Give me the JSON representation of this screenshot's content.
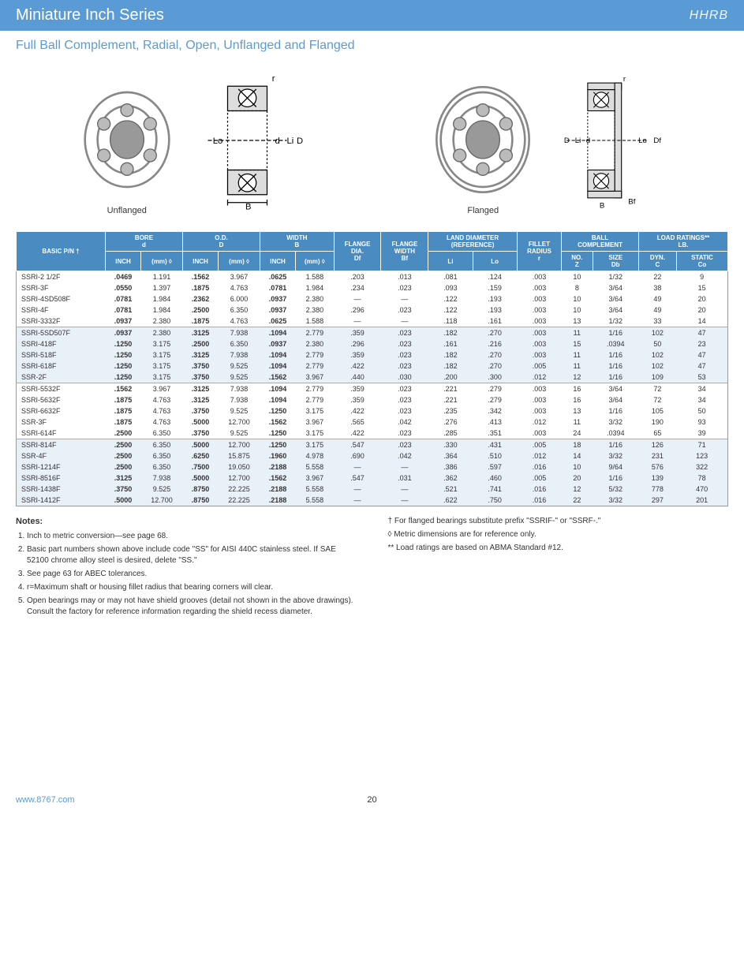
{
  "header": {
    "title": "Miniature Inch Series",
    "logo": "HHRB"
  },
  "subtitle": "Full Ball Complement, Radial, Open, Unflanged and Flanged",
  "diagram_labels": {
    "unflanged": "Unflanged",
    "flanged": "Flanged"
  },
  "dim_labels": {
    "r": "r",
    "d": "d",
    "D": "D",
    "Li": "Li",
    "Lo": "Lo",
    "B": "B",
    "Bf": "Bf",
    "Df": "Df"
  },
  "table": {
    "headers": {
      "basic_pn": "BASIC P/N †",
      "bore": "BORE\nd",
      "bore_inch": "INCH",
      "bore_mm": "(mm) ◊",
      "od": "O.D.\nD",
      "od_inch": "INCH",
      "od_mm": "(mm) ◊",
      "width": "WIDTH\nB",
      "width_inch": "INCH",
      "width_mm": "(mm) ◊",
      "flange_dia": "FLANGE\nDIA.\nDf",
      "flange_width": "FLANGE\nWIDTH\nBf",
      "land": "LAND DIAMETER\n(REFERENCE)",
      "land_li": "Li",
      "land_lo": "Lo",
      "fillet": "FILLET\nRADIUS\nr",
      "ball": "BALL\nCOMPLEMENT",
      "ball_no": "NO.\nZ",
      "ball_size": "SIZE\nDb",
      "load": "LOAD RATINGS**\nLB.",
      "load_dyn": "DYN.\nC",
      "load_static": "STATIC\nCo"
    },
    "groups": [
      {
        "alt": false,
        "rows": [
          {
            "pn": "SSRI-2 1/2F",
            "bi": ".0469",
            "bm": "1.191",
            "oi": ".1562",
            "om": "3.967",
            "wi": ".0625",
            "wm": "1.588",
            "fd": ".203",
            "fw": ".013",
            "li": ".081",
            "lo": ".124",
            "fr": ".003",
            "bz": "10",
            "bs": "1/32",
            "dc": "22",
            "sc": "9"
          },
          {
            "pn": "SSRI-3F",
            "bi": ".0550",
            "bm": "1.397",
            "oi": ".1875",
            "om": "4.763",
            "wi": ".0781",
            "wm": "1.984",
            "fd": ".234",
            "fw": ".023",
            "li": ".093",
            "lo": ".159",
            "fr": ".003",
            "bz": "8",
            "bs": "3/64",
            "dc": "38",
            "sc": "15"
          },
          {
            "pn": "SSRI-4SD508F",
            "bi": ".0781",
            "bm": "1.984",
            "oi": ".2362",
            "om": "6.000",
            "wi": ".0937",
            "wm": "2.380",
            "fd": "—",
            "fw": "—",
            "li": ".122",
            "lo": ".193",
            "fr": ".003",
            "bz": "10",
            "bs": "3/64",
            "dc": "49",
            "sc": "20"
          },
          {
            "pn": "SSRI-4F",
            "bi": ".0781",
            "bm": "1.984",
            "oi": ".2500",
            "om": "6.350",
            "wi": ".0937",
            "wm": "2.380",
            "fd": ".296",
            "fw": ".023",
            "li": ".122",
            "lo": ".193",
            "fr": ".003",
            "bz": "10",
            "bs": "3/64",
            "dc": "49",
            "sc": "20"
          },
          {
            "pn": "SSRI-3332F",
            "bi": ".0937",
            "bm": "2.380",
            "oi": ".1875",
            "om": "4.763",
            "wi": ".0625",
            "wm": "1.588",
            "fd": "—",
            "fw": "—",
            "li": ".118",
            "lo": ".161",
            "fr": ".003",
            "bz": "13",
            "bs": "1/32",
            "dc": "33",
            "sc": "14"
          }
        ]
      },
      {
        "alt": true,
        "rows": [
          {
            "pn": "SSRI-5SD507F",
            "bi": ".0937",
            "bm": "2.380",
            "oi": ".3125",
            "om": "7.938",
            "wi": ".1094",
            "wm": "2.779",
            "fd": ".359",
            "fw": ".023",
            "li": ".182",
            "lo": ".270",
            "fr": ".003",
            "bz": "11",
            "bs": "1/16",
            "dc": "102",
            "sc": "47"
          },
          {
            "pn": "SSRI-418F",
            "bi": ".1250",
            "bm": "3.175",
            "oi": ".2500",
            "om": "6.350",
            "wi": ".0937",
            "wm": "2.380",
            "fd": ".296",
            "fw": ".023",
            "li": ".161",
            "lo": ".216",
            "fr": ".003",
            "bz": "15",
            "bs": ".0394",
            "dc": "50",
            "sc": "23"
          },
          {
            "pn": "SSRI-518F",
            "bi": ".1250",
            "bm": "3.175",
            "oi": ".3125",
            "om": "7.938",
            "wi": ".1094",
            "wm": "2.779",
            "fd": ".359",
            "fw": ".023",
            "li": ".182",
            "lo": ".270",
            "fr": ".003",
            "bz": "11",
            "bs": "1/16",
            "dc": "102",
            "sc": "47"
          },
          {
            "pn": "SSRI-618F",
            "bi": ".1250",
            "bm": "3.175",
            "oi": ".3750",
            "om": "9.525",
            "wi": ".1094",
            "wm": "2.779",
            "fd": ".422",
            "fw": ".023",
            "li": ".182",
            "lo": ".270",
            "fr": ".005",
            "bz": "11",
            "bs": "1/16",
            "dc": "102",
            "sc": "47"
          },
          {
            "pn": "SSR-2F",
            "bi": ".1250",
            "bm": "3.175",
            "oi": ".3750",
            "om": "9.525",
            "wi": ".1562",
            "wm": "3.967",
            "fd": ".440",
            "fw": ".030",
            "li": ".200",
            "lo": ".300",
            "fr": ".012",
            "bz": "12",
            "bs": "1/16",
            "dc": "109",
            "sc": "53"
          }
        ]
      },
      {
        "alt": false,
        "rows": [
          {
            "pn": "SSRI-5532F",
            "bi": ".1562",
            "bm": "3.967",
            "oi": ".3125",
            "om": "7.938",
            "wi": ".1094",
            "wm": "2.779",
            "fd": ".359",
            "fw": ".023",
            "li": ".221",
            "lo": ".279",
            "fr": ".003",
            "bz": "16",
            "bs": "3/64",
            "dc": "72",
            "sc": "34"
          },
          {
            "pn": "SSRI-5632F",
            "bi": ".1875",
            "bm": "4.763",
            "oi": ".3125",
            "om": "7.938",
            "wi": ".1094",
            "wm": "2.779",
            "fd": ".359",
            "fw": ".023",
            "li": ".221",
            "lo": ".279",
            "fr": ".003",
            "bz": "16",
            "bs": "3/64",
            "dc": "72",
            "sc": "34"
          },
          {
            "pn": "SSRI-6632F",
            "bi": ".1875",
            "bm": "4.763",
            "oi": ".3750",
            "om": "9.525",
            "wi": ".1250",
            "wm": "3.175",
            "fd": ".422",
            "fw": ".023",
            "li": ".235",
            "lo": ".342",
            "fr": ".003",
            "bz": "13",
            "bs": "1/16",
            "dc": "105",
            "sc": "50"
          },
          {
            "pn": "SSR-3F",
            "bi": ".1875",
            "bm": "4.763",
            "oi": ".5000",
            "om": "12.700",
            "wi": ".1562",
            "wm": "3.967",
            "fd": ".565",
            "fw": ".042",
            "li": ".276",
            "lo": ".413",
            "fr": ".012",
            "bz": "11",
            "bs": "3/32",
            "dc": "190",
            "sc": "93"
          },
          {
            "pn": "SSRI-614F",
            "bi": ".2500",
            "bm": "6.350",
            "oi": ".3750",
            "om": "9.525",
            "wi": ".1250",
            "wm": "3.175",
            "fd": ".422",
            "fw": ".023",
            "li": ".285",
            "lo": ".351",
            "fr": ".003",
            "bz": "24",
            "bs": ".0394",
            "dc": "65",
            "sc": "39"
          }
        ]
      },
      {
        "alt": true,
        "rows": [
          {
            "pn": "SSRI-814F",
            "bi": ".2500",
            "bm": "6.350",
            "oi": ".5000",
            "om": "12.700",
            "wi": ".1250",
            "wm": "3.175",
            "fd": ".547",
            "fw": ".023",
            "li": ".330",
            "lo": ".431",
            "fr": ".005",
            "bz": "18",
            "bs": "1/16",
            "dc": "126",
            "sc": "71"
          },
          {
            "pn": "SSR-4F",
            "bi": ".2500",
            "bm": "6.350",
            "oi": ".6250",
            "om": "15.875",
            "wi": ".1960",
            "wm": "4.978",
            "fd": ".690",
            "fw": ".042",
            "li": ".364",
            "lo": ".510",
            "fr": ".012",
            "bz": "14",
            "bs": "3/32",
            "dc": "231",
            "sc": "123"
          },
          {
            "pn": "SSRI-1214F",
            "bi": ".2500",
            "bm": "6.350",
            "oi": ".7500",
            "om": "19.050",
            "wi": ".2188",
            "wm": "5.558",
            "fd": "—",
            "fw": "—",
            "li": ".386",
            "lo": ".597",
            "fr": ".016",
            "bz": "10",
            "bs": "9/64",
            "dc": "576",
            "sc": "322"
          },
          {
            "pn": "SSRI-8516F",
            "bi": ".3125",
            "bm": "7.938",
            "oi": ".5000",
            "om": "12.700",
            "wi": ".1562",
            "wm": "3.967",
            "fd": ".547",
            "fw": ".031",
            "li": ".362",
            "lo": ".460",
            "fr": ".005",
            "bz": "20",
            "bs": "1/16",
            "dc": "139",
            "sc": "78"
          },
          {
            "pn": "SSRI-1438F",
            "bi": ".3750",
            "bm": "9.525",
            "oi": ".8750",
            "om": "22.225",
            "wi": ".2188",
            "wm": "5.558",
            "fd": "—",
            "fw": "—",
            "li": ".521",
            "lo": ".741",
            "fr": ".016",
            "bz": "12",
            "bs": "5/32",
            "dc": "778",
            "sc": "470"
          },
          {
            "pn": "SSRI-1412F",
            "bi": ".5000",
            "bm": "12.700",
            "oi": ".8750",
            "om": "22.225",
            "wi": ".2188",
            "wm": "5.558",
            "fd": "—",
            "fw": "—",
            "li": ".622",
            "lo": ".750",
            "fr": ".016",
            "bz": "22",
            "bs": "3/32",
            "dc": "297",
            "sc": "201"
          }
        ]
      }
    ]
  },
  "notes": {
    "title": "Notes:",
    "left": [
      "Inch to metric conversion—see page 68.",
      "Basic part numbers shown above include code \"SS\" for AISI 440C stainless steel. If SAE 52100 chrome alloy steel is desired, delete \"SS.\"",
      "See page 63 for ABEC tolerances.",
      "r=Maximum shaft or housing fillet radius that bearing corners will clear.",
      "Open bearings may or may not have shield grooves (detail not shown in the above drawings). Consult the factory for reference information regarding the shield recess diameter."
    ],
    "right": [
      "†  For flanged bearings substitute prefix \"SSRIF-\" or \"SSRF-.\"",
      "◊  Metric dimensions are for reference only.",
      "** Load ratings are based on ABMA Standard #12."
    ]
  },
  "footer": {
    "url": "www.8767.com",
    "page": "20"
  },
  "colors": {
    "header_bg": "#5b9bd5",
    "th_bg": "#4a8bc2",
    "alt_row": "#e8f0f8",
    "link": "#5b9bd5"
  }
}
